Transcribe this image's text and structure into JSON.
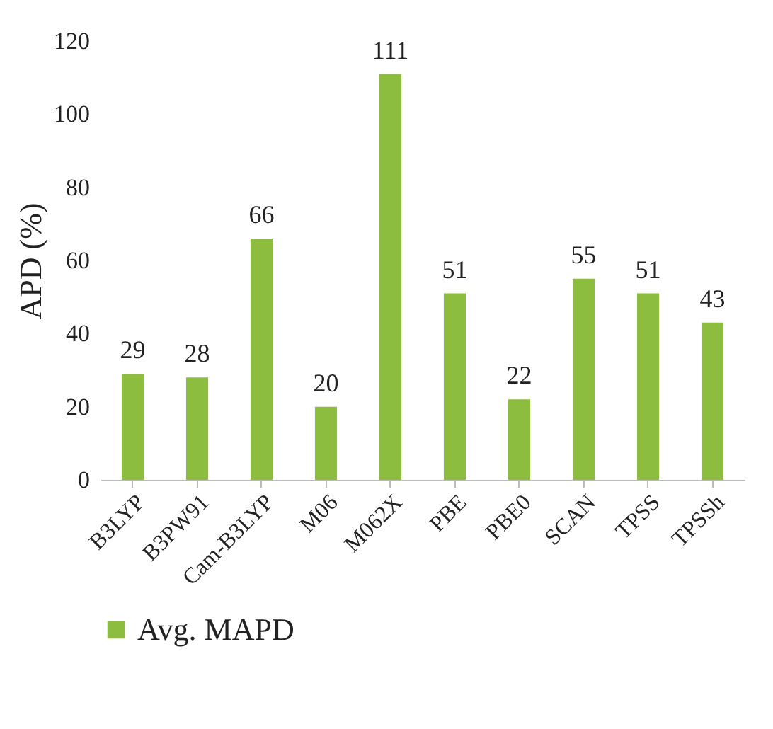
{
  "chart_data": {
    "type": "bar",
    "ylabel": "APD (%)",
    "categories": [
      "B3LYP",
      "B3PW91",
      "Cam-B3LYP",
      "M06",
      "M062X",
      "PBE",
      "PBE0",
      "SCAN",
      "TPSS",
      "TPSSh"
    ],
    "series": [
      {
        "name": "Avg. MAPD",
        "color": "#8cbd3f",
        "values": [
          29,
          28,
          66,
          20,
          111,
          51,
          22,
          55,
          51,
          43
        ]
      }
    ],
    "ylim": [
      0,
      120
    ],
    "yticks": [
      0,
      20,
      40,
      60,
      80,
      100,
      120
    ],
    "grid": false,
    "legend": "bottom",
    "data_labels": true
  }
}
